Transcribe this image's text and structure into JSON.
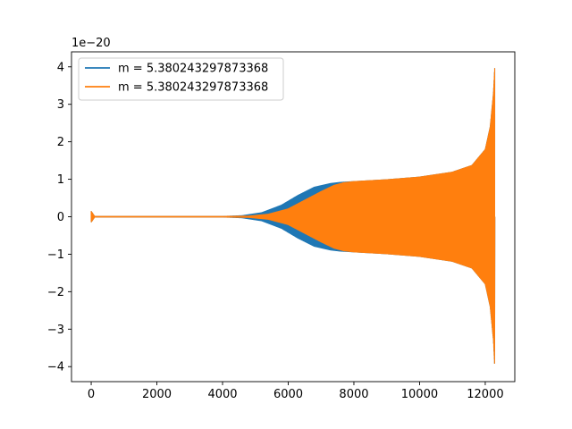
{
  "chart_data": {
    "type": "line",
    "title": "",
    "xlabel": "",
    "ylabel": "",
    "y_scale_label": "1e−20",
    "xlim": [
      -600,
      12900
    ],
    "ylim": [
      -4.4,
      4.4
    ],
    "x_ticks": [
      0,
      2000,
      4000,
      6000,
      8000,
      10000,
      12000
    ],
    "y_ticks": [
      -4,
      -3,
      -2,
      -1,
      0,
      1,
      2,
      3,
      4
    ],
    "legend_position": "top-left",
    "grid": false,
    "series": [
      {
        "name": "m = 5.380243297873368",
        "color": "#1f77b4",
        "style": "oscillating waveform, amplitude envelope (x, amplitude)",
        "envelope": [
          [
            0,
            0.15
          ],
          [
            100,
            0.02
          ],
          [
            2000,
            0.02
          ],
          [
            4000,
            0.02
          ],
          [
            4600,
            0.04
          ],
          [
            5200,
            0.12
          ],
          [
            5800,
            0.32
          ],
          [
            6300,
            0.58
          ],
          [
            6800,
            0.8
          ],
          [
            7300,
            0.9
          ],
          [
            7600,
            0.93
          ],
          [
            8000,
            0.95
          ],
          [
            9000,
            1.0
          ],
          [
            10000,
            1.07
          ],
          [
            11000,
            1.2
          ],
          [
            11600,
            1.38
          ],
          [
            12000,
            1.8
          ],
          [
            12150,
            2.4
          ],
          [
            12250,
            3.3
          ],
          [
            12290,
            4.0
          ]
        ]
      },
      {
        "name": "m = 5.380243297873368",
        "color": "#ff7f0e",
        "style": "oscillating waveform, amplitude envelope (x, amplitude)",
        "envelope": [
          [
            0,
            0.15
          ],
          [
            100,
            0.02
          ],
          [
            2000,
            0.02
          ],
          [
            4000,
            0.02
          ],
          [
            4800,
            0.03
          ],
          [
            5400,
            0.08
          ],
          [
            6000,
            0.22
          ],
          [
            6500,
            0.45
          ],
          [
            7000,
            0.68
          ],
          [
            7400,
            0.85
          ],
          [
            7700,
            0.92
          ],
          [
            8000,
            0.95
          ],
          [
            9000,
            1.0
          ],
          [
            10000,
            1.07
          ],
          [
            11000,
            1.2
          ],
          [
            11600,
            1.38
          ],
          [
            12000,
            1.8
          ],
          [
            12150,
            2.4
          ],
          [
            12250,
            3.3
          ],
          [
            12290,
            4.0
          ]
        ]
      }
    ]
  }
}
